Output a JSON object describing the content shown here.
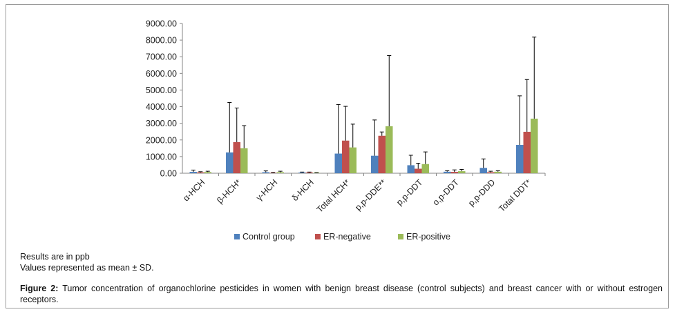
{
  "chart_data": {
    "type": "bar",
    "categories": [
      "α-HCH",
      "β-HCH*",
      "γ-HCH",
      "δ-HCH",
      "Total HCH*",
      "p,p-DDE**",
      "p,p-DDT",
      "o,p-DDT",
      "p,p-DDD",
      "Total DDT*"
    ],
    "series": [
      {
        "name": "Control group",
        "color": "#4f81bd",
        "values": [
          80,
          1250,
          60,
          40,
          1180,
          1050,
          480,
          90,
          320,
          1700
        ],
        "errors": [
          110,
          3000,
          80,
          30,
          2950,
          2150,
          600,
          60,
          540,
          2950
        ]
      },
      {
        "name": "ER-negative",
        "color": "#c0504d",
        "values": [
          50,
          1870,
          20,
          40,
          1960,
          2250,
          270,
          80,
          60,
          2490
        ],
        "errors": [
          40,
          2050,
          30,
          30,
          2060,
          230,
          330,
          120,
          60,
          3140
        ]
      },
      {
        "name": "ER-positive",
        "color": "#9bbb59",
        "values": [
          70,
          1500,
          60,
          20,
          1550,
          2820,
          550,
          120,
          90,
          3280
        ],
        "errors": [
          50,
          1360,
          60,
          20,
          1400,
          4250,
          730,
          110,
          60,
          4900
        ]
      }
    ],
    "yticks": [
      "0.00",
      "1000.00",
      "2000.00",
      "3000.00",
      "4000.00",
      "5000.00",
      "6000.00",
      "7000.00",
      "8000.00",
      "9000.00"
    ],
    "ylim": [
      0,
      9000
    ],
    "legend_position": "bottom",
    "grid": false
  },
  "notes": {
    "units": "Results are in ppb",
    "values": "Values represented as mean ± SD."
  },
  "caption": {
    "label": "Figure 2:",
    "text": " Tumor concentration of organochlorine pesticides in women with benign breast disease (control subjects) and breast cancer with or without estrogen receptors."
  }
}
